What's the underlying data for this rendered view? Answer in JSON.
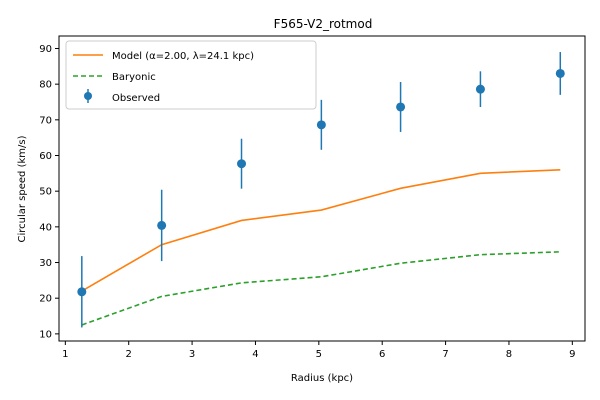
{
  "chart_data": {
    "type": "line",
    "title": "F565-V2_rotmod",
    "xlabel": "Radius (kpc)",
    "ylabel": "Circular speed (km/s)",
    "xlim": [
      0.9,
      9.2
    ],
    "ylim": [
      8,
      93.5
    ],
    "xticks": [
      1,
      2,
      3,
      4,
      5,
      6,
      7,
      8,
      9
    ],
    "yticks": [
      10,
      20,
      30,
      40,
      50,
      60,
      70,
      80,
      90
    ],
    "grid": false,
    "legend_position": "top-left",
    "x": [
      1.26,
      2.52,
      3.78,
      5.04,
      6.29,
      7.55,
      8.81
    ],
    "series": [
      {
        "name": "Model (α=2.00, λ=24.1 kpc)",
        "style": "solid-line",
        "color": "#ff7f0e",
        "values": [
          22.0,
          35.0,
          41.8,
          44.7,
          50.8,
          55.0,
          56.0
        ]
      },
      {
        "name": "Baryonic",
        "style": "dashed-line",
        "color": "#2ca02c",
        "values": [
          12.5,
          20.5,
          24.3,
          26.0,
          29.8,
          32.2,
          33.0
        ]
      },
      {
        "name": "Observed",
        "style": "errorbar-points",
        "color": "#1f77b4",
        "values": [
          21.8,
          40.4,
          57.7,
          68.6,
          73.6,
          78.6,
          83.0
        ],
        "errors": [
          10.0,
          10.0,
          7.0,
          7.0,
          7.0,
          5.0,
          6.0
        ]
      }
    ]
  }
}
